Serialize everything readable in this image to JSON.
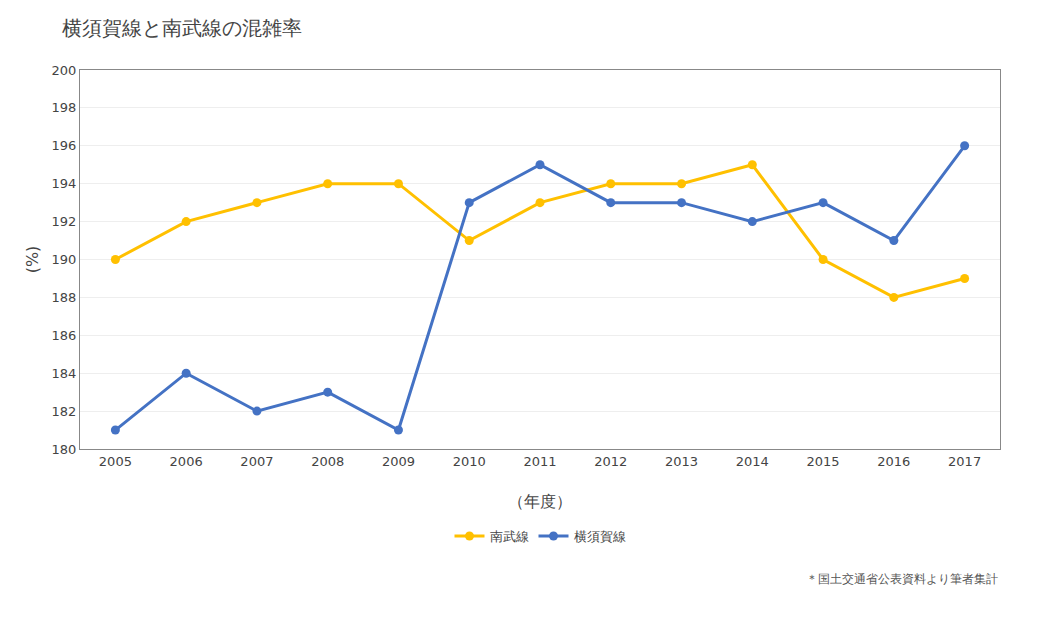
{
  "chart_data": {
    "type": "line",
    "title": "横須賀線と南武線の混雑率",
    "xlabel": "（年度）",
    "ylabel": "(%)",
    "annotations": [
      "＊国土交通省公表資料より筆者集計"
    ],
    "x": [
      2005,
      2006,
      2007,
      2008,
      2009,
      2010,
      2011,
      2012,
      2013,
      2014,
      2015,
      2016,
      2017
    ],
    "series": [
      {
        "name": "南武線",
        "color": "#ffc000",
        "marker": "circle",
        "values": [
          190,
          192,
          193,
          194,
          194,
          191,
          193,
          194,
          194,
          195,
          190,
          188,
          189
        ]
      },
      {
        "name": "横須賀線",
        "color": "#4472c4",
        "marker": "circle",
        "values": [
          181,
          184,
          182,
          183,
          181,
          193,
          195,
          193,
          193,
          192,
          193,
          191,
          196
        ]
      }
    ],
    "xlim": [
      2004.5,
      2017.5
    ],
    "xticks": [
      2005,
      2006,
      2007,
      2008,
      2009,
      2010,
      2011,
      2012,
      2013,
      2014,
      2015,
      2016,
      2017
    ],
    "ylim": [
      180,
      200
    ],
    "yticks": [
      180,
      182,
      184,
      186,
      188,
      190,
      192,
      194,
      196,
      198,
      200
    ],
    "grid": true,
    "legend": "bottom"
  }
}
